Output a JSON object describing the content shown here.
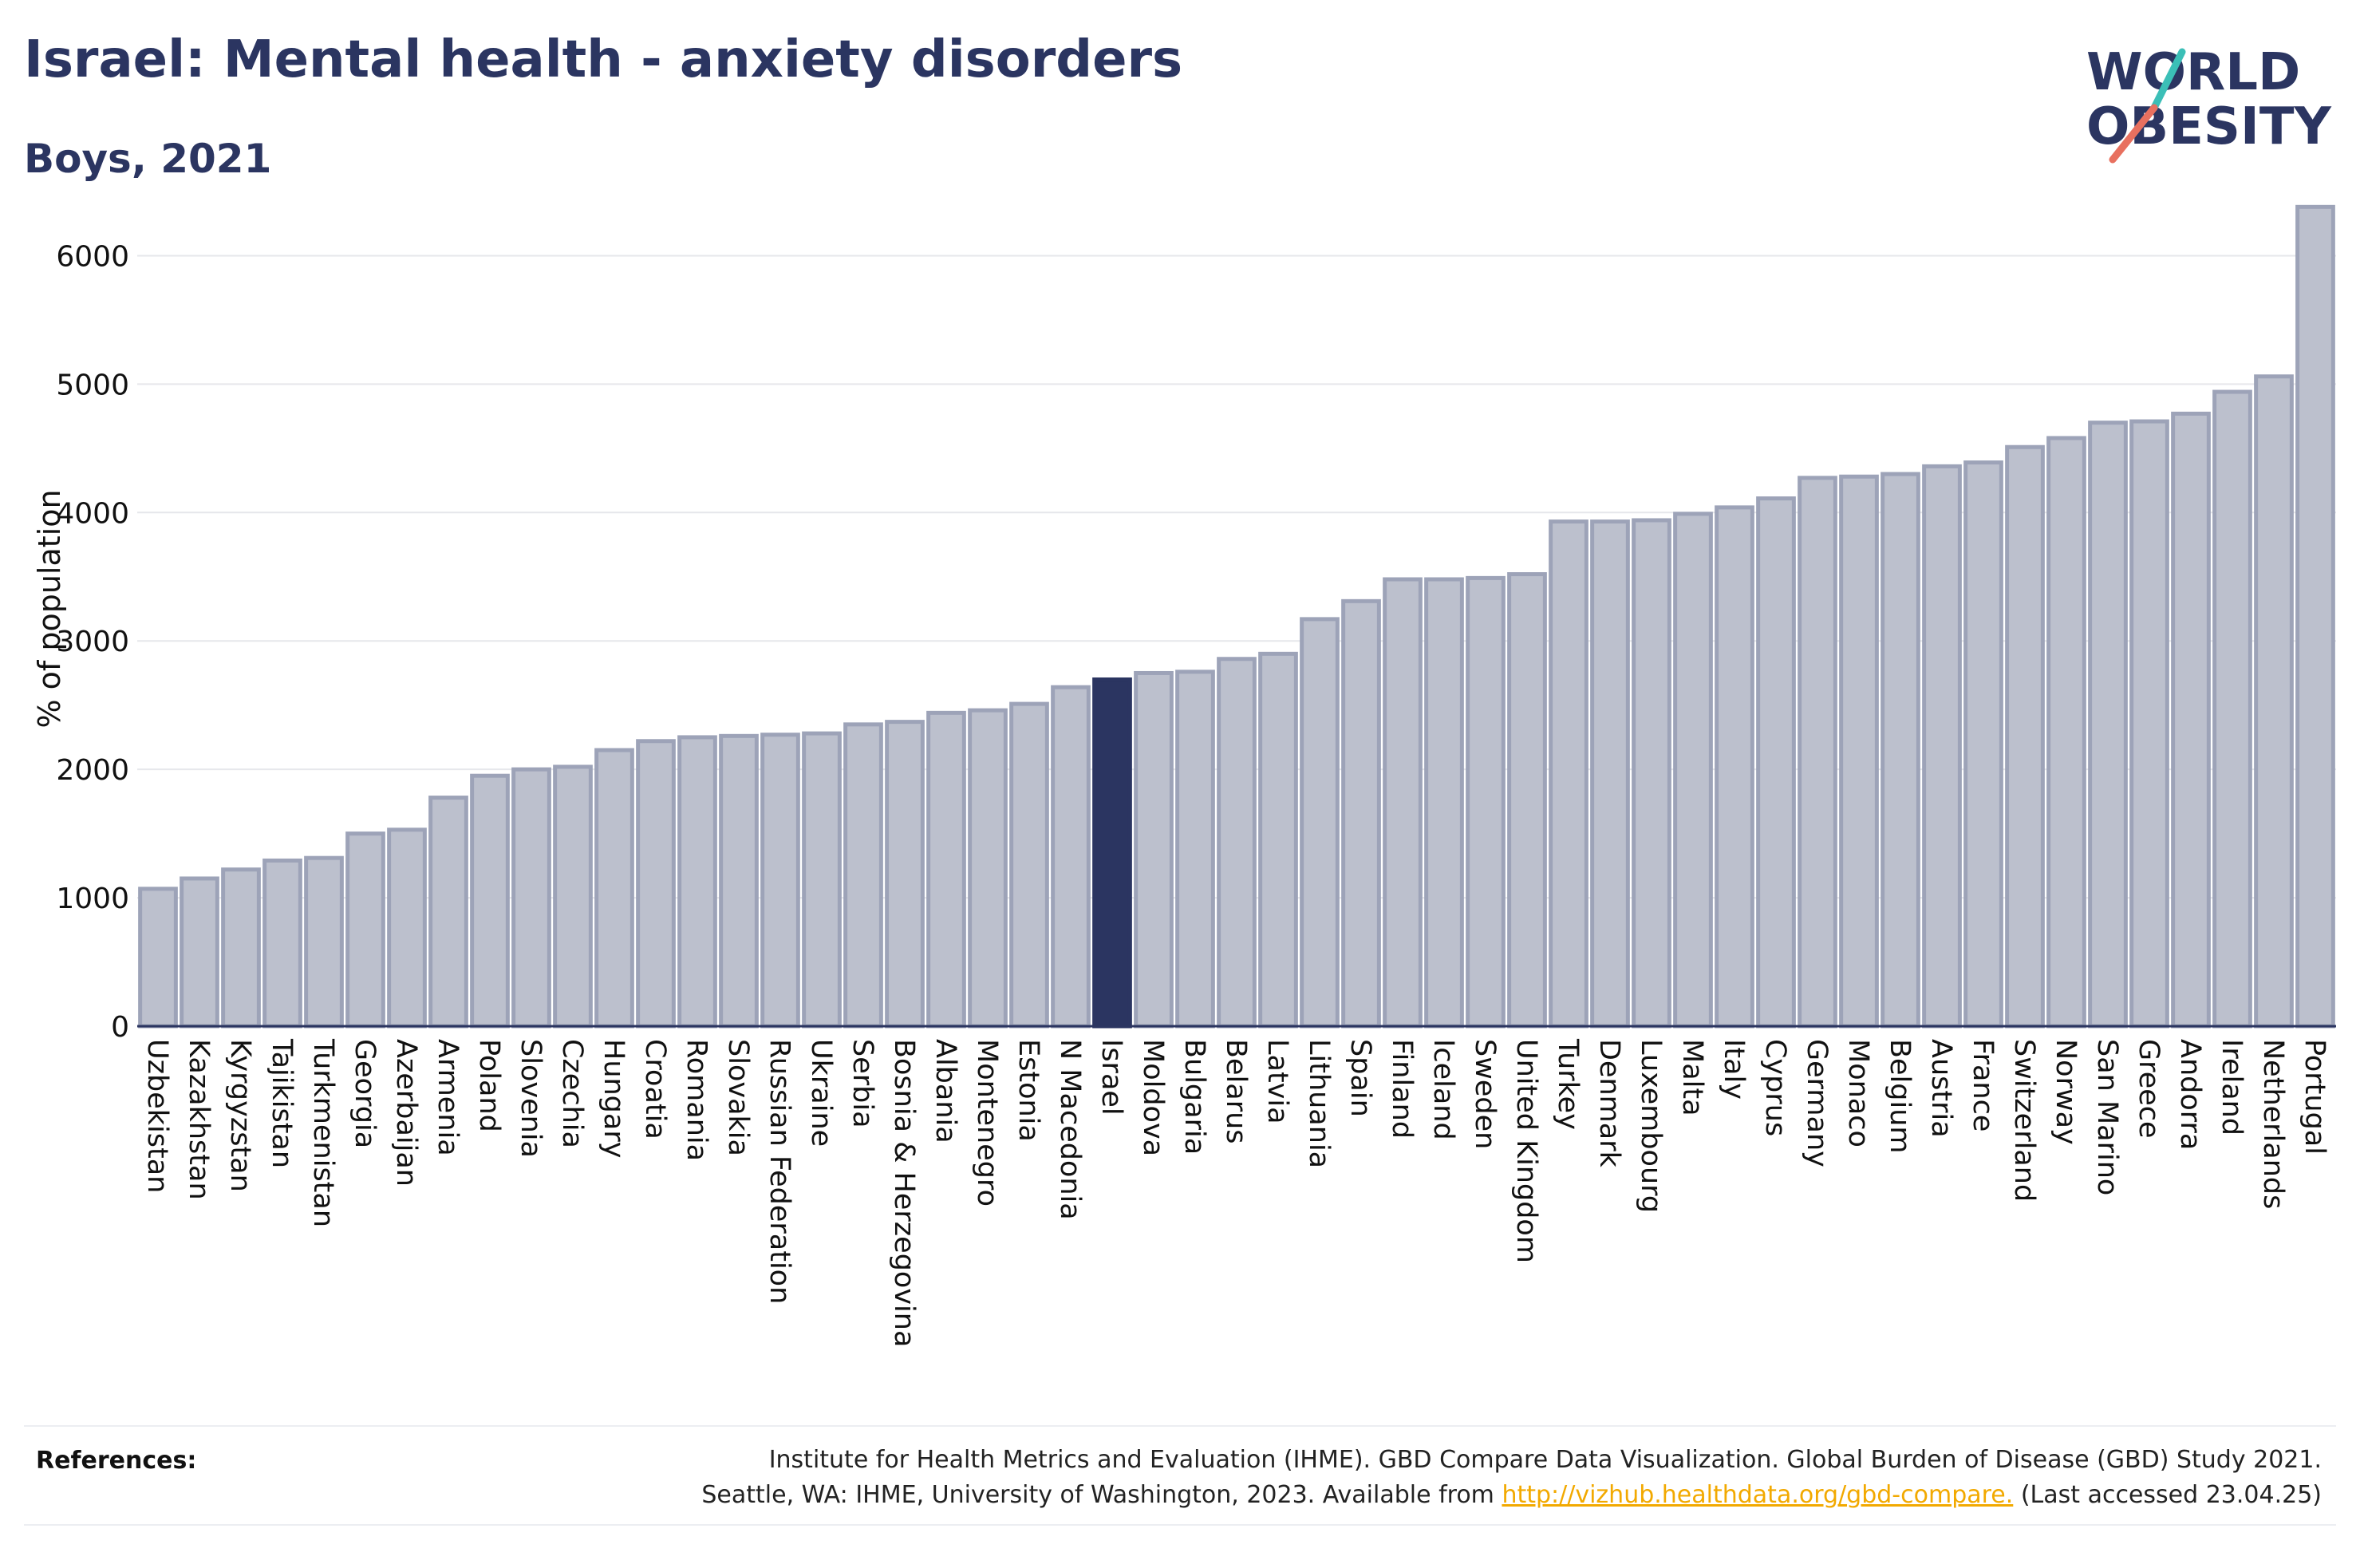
{
  "header": {
    "title": "Israel: Mental health - anxiety disorders",
    "subtitle": "Boys, 2021"
  },
  "logo": {
    "line1": "WORLD",
    "line2": "OBESITY"
  },
  "colors": {
    "highlight": "#2b3561",
    "bar_fill": "#bcc0cd",
    "bar_stroke": "#9da3b8",
    "grid": "#e6e7eb",
    "logo_teal": "#3bbfb7",
    "logo_coral": "#e8705f",
    "link": "#f2a900"
  },
  "chart_data": {
    "type": "bar",
    "ylabel": "% of population",
    "xlabel": "",
    "ylim": [
      0,
      6500
    ],
    "yticks": [
      0,
      1000,
      2000,
      3000,
      4000,
      5000,
      6000
    ],
    "grid": true,
    "highlight": "Israel",
    "categories": [
      "Uzbekistan",
      "Kazakhstan",
      "Kyrgyzstan",
      "Tajikistan",
      "Turkmenistan",
      "Georgia",
      "Azerbaijan",
      "Armenia",
      "Poland",
      "Slovenia",
      "Czechia",
      "Hungary",
      "Croatia",
      "Romania",
      "Slovakia",
      "Russian Federation",
      "Ukraine",
      "Serbia",
      "Bosnia & Herzegovina",
      "Albania",
      "Montenegro",
      "Estonia",
      "N Macedonia",
      "Israel",
      "Moldova",
      "Bulgaria",
      "Belarus",
      "Latvia",
      "Lithuania",
      "Spain",
      "Finland",
      "Iceland",
      "Sweden",
      "United Kingdom",
      "Turkey",
      "Denmark",
      "Luxembourg",
      "Malta",
      "Italy",
      "Cyprus",
      "Germany",
      "Monaco",
      "Belgium",
      "Austria",
      "France",
      "Switzerland",
      "Norway",
      "San Marino",
      "Greece",
      "Andorra",
      "Ireland",
      "Netherlands",
      "Portugal"
    ],
    "values": [
      1070,
      1150,
      1220,
      1290,
      1310,
      1500,
      1530,
      1780,
      1950,
      2000,
      2020,
      2150,
      2220,
      2250,
      2260,
      2270,
      2280,
      2350,
      2370,
      2440,
      2460,
      2510,
      2640,
      2700,
      2750,
      2760,
      2860,
      2900,
      3170,
      3310,
      3480,
      3480,
      3490,
      3520,
      3930,
      3930,
      3940,
      3990,
      4040,
      4110,
      4270,
      4280,
      4300,
      4360,
      4390,
      4510,
      4580,
      4700,
      4710,
      4770,
      4940,
      5060,
      6380
    ]
  },
  "references": {
    "label": "References:",
    "line1": "Institute for Health Metrics and Evaluation (IHME). GBD Compare Data Visualization. Global Burden of Disease (GBD) Study 2021.",
    "line2_prefix": "Seattle, WA: IHME, University of Washington, 2023. Available from ",
    "link": "http://vizhub.healthdata.org/gbd-compare.",
    "line2_suffix": " (Last accessed 23.04.25)"
  }
}
